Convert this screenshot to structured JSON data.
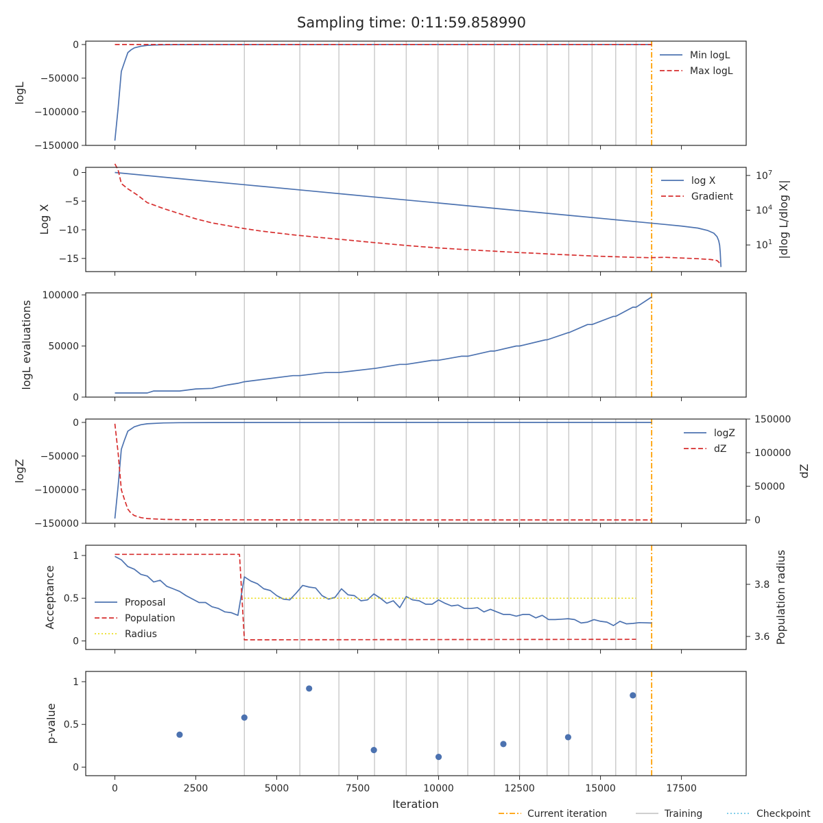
{
  "figure": {
    "title": "Sampling time: 0:11:59.858990",
    "xlabel": "Iteration",
    "xlim": [
      -900,
      19500
    ],
    "xticks": [
      0,
      2500,
      5000,
      7500,
      10000,
      12500,
      15000,
      17500
    ],
    "training_iterations": [
      4000,
      5714,
      6920,
      8020,
      9000,
      9980,
      10900,
      11720,
      12500,
      13350,
      14020,
      14740,
      15470,
      16100
    ],
    "current_iteration": 16580,
    "legend": {
      "current_label": "Current iteration",
      "training_label": "Training",
      "checkpoint_label": "Checkpoint"
    },
    "colors": {
      "blue": "#4c72b0",
      "red": "#d62d2d",
      "orange": "#ff9f00",
      "yellow": "#e8d800",
      "grey": "#c8c8c8",
      "cyan": "#6ec6e6"
    }
  },
  "chart_data": [
    {
      "type": "line",
      "panel": "logL",
      "ylabel": "logL",
      "ylim": [
        -150000,
        5000
      ],
      "yticks": [
        0,
        -50000,
        -100000,
        -150000
      ],
      "series": [
        {
          "name": "Min logL",
          "style": "solid",
          "color": "#4c72b0",
          "x": [
            0,
            100,
            200,
            300,
            400,
            500,
            600,
            800,
            1000,
            1200,
            1500,
            2000,
            3000,
            5000,
            8000,
            12000,
            16580
          ],
          "y": [
            -143000,
            -95000,
            -40000,
            -26000,
            -12000,
            -8000,
            -5000,
            -2500,
            -1200,
            -700,
            -400,
            -200,
            -100,
            -50,
            -20,
            -10,
            -5
          ]
        },
        {
          "name": "Max logL",
          "style": "dashed",
          "color": "#d62d2d",
          "x": [
            0,
            16580
          ],
          "y": [
            -2,
            -2
          ]
        }
      ]
    },
    {
      "type": "line",
      "panel": "logX",
      "ylabel": "Log X",
      "ylabel_right": "|dlog L/dlog X|",
      "ylim": [
        -17.3,
        0.9
      ],
      "yticks": [
        0,
        -5,
        -10,
        -15
      ],
      "y2_log": true,
      "y2_ticks": [
        {
          "base": "10",
          "exp": "7",
          "value": 10000000
        },
        {
          "base": "10",
          "exp": "4",
          "value": 10000
        },
        {
          "base": "10",
          "exp": "1",
          "value": 10
        }
      ],
      "y2_range_log10": [
        -1.3,
        7.7
      ],
      "series": [
        {
          "name": "log X",
          "style": "solid",
          "color": "#4c72b0",
          "x": [
            0,
            2000,
            4000,
            6000,
            8000,
            10000,
            12000,
            14000,
            16000,
            17000,
            17500,
            18000,
            18300,
            18500,
            18600,
            18650,
            18680,
            18700,
            18720
          ],
          "y": [
            0,
            -1.07,
            -2.13,
            -3.2,
            -4.27,
            -5.33,
            -6.4,
            -7.47,
            -8.53,
            -9.07,
            -9.35,
            -9.7,
            -10.1,
            -10.6,
            -11.2,
            -11.9,
            -12.7,
            -14.0,
            -16.5
          ]
        },
        {
          "name": "Gradient",
          "style": "dashed",
          "color": "#d62d2d",
          "axis": "right",
          "x": [
            0,
            100,
            200,
            400,
            700,
            1000,
            1500,
            2000,
            2500,
            3000,
            3500,
            4000,
            4500,
            5000,
            5500,
            6000,
            6500,
            7000,
            7500,
            8000,
            8500,
            9000,
            9500,
            10000,
            10500,
            11000,
            11500,
            12000,
            12500,
            13000,
            13500,
            14000,
            14500,
            15000,
            15500,
            16000,
            16500,
            17000,
            17500,
            18000,
            18400,
            18600,
            18720
          ],
          "y": [
            100000000,
            30000000,
            2000000,
            700000,
            200000,
            45000,
            14000,
            5000,
            1800,
            800,
            450,
            260,
            160,
            110,
            75,
            55,
            40,
            30,
            22,
            16,
            12,
            9,
            7,
            5.5,
            4.5,
            3.7,
            3.1,
            2.6,
            2.2,
            1.9,
            1.6,
            1.4,
            1.2,
            1.05,
            0.95,
            0.85,
            0.8,
            0.85,
            0.75,
            0.65,
            0.55,
            0.45,
            0.22
          ]
        }
      ]
    },
    {
      "type": "line",
      "panel": "evaluations",
      "ylabel": "logL evaluations",
      "ylim": [
        0,
        102000
      ],
      "yticks": [
        0,
        50000,
        100000
      ],
      "series": [
        {
          "name": "",
          "style": "solid",
          "color": "#4c72b0",
          "x": [
            0,
            1000,
            1200,
            2000,
            2500,
            3000,
            3200,
            3500,
            3800,
            4000,
            5500,
            5714,
            6500,
            6920,
            8000,
            8020,
            8800,
            9000,
            9800,
            9980,
            10700,
            10900,
            11600,
            11720,
            12400,
            12500,
            13300,
            13350,
            14000,
            14020,
            14600,
            14740,
            15400,
            15470,
            16000,
            16100,
            16580
          ],
          "y": [
            4000,
            4000,
            6000,
            6000,
            8000,
            8500,
            10000,
            12000,
            13500,
            15000,
            21000,
            21000,
            24000,
            24000,
            28000,
            28000,
            32000,
            32000,
            36000,
            36000,
            40000,
            40000,
            45000,
            45000,
            50000,
            50000,
            56000,
            56000,
            63000,
            63000,
            71000,
            71000,
            79000,
            79000,
            88000,
            88000,
            98000
          ]
        }
      ]
    },
    {
      "type": "line",
      "panel": "logZ",
      "ylabel": "logZ",
      "ylabel_right": "dZ",
      "ylim": [
        -150000,
        5000
      ],
      "yticks": [
        0,
        -50000,
        -100000,
        -150000
      ],
      "y2lim": [
        -5000,
        150000
      ],
      "y2ticks": [
        150000,
        100000,
        50000,
        0
      ],
      "series": [
        {
          "name": "logZ",
          "style": "solid",
          "color": "#4c72b0",
          "x": [
            0,
            100,
            200,
            300,
            400,
            600,
            800,
            1000,
            1500,
            2000,
            3000,
            5000,
            8000,
            12000,
            16580
          ],
          "y": [
            -143000,
            -95000,
            -40000,
            -26000,
            -13000,
            -6500,
            -3500,
            -2000,
            -800,
            -400,
            -150,
            -60,
            -25,
            -10,
            -5
          ]
        },
        {
          "name": "dZ",
          "style": "dashed",
          "color": "#d62d2d",
          "axis": "right",
          "x": [
            0,
            100,
            200,
            300,
            400,
            500,
            600,
            800,
            1000,
            1500,
            2000,
            3000,
            5000,
            8000,
            12000,
            16580
          ],
          "y": [
            143000,
            100000,
            45000,
            30000,
            16000,
            10000,
            6500,
            3500,
            2000,
            800,
            400,
            150,
            60,
            25,
            10,
            5
          ]
        }
      ]
    },
    {
      "type": "line",
      "panel": "acceptance",
      "ylabel": "Acceptance",
      "ylabel_right": "Population radius",
      "ylim": [
        -0.1,
        1.12
      ],
      "yticks": [
        1.0,
        0.5,
        0.0
      ],
      "y2lim": [
        3.55,
        3.95
      ],
      "y2ticks": [
        3.8,
        3.6
      ],
      "series": [
        {
          "name": "Proposal",
          "style": "solid",
          "color": "#4c72b0",
          "x": [
            0,
            200,
            400,
            600,
            800,
            1000,
            1200,
            1400,
            1600,
            1800,
            2000,
            2200,
            2400,
            2600,
            2800,
            3000,
            3200,
            3400,
            3600,
            3800,
            4000,
            4200,
            4400,
            4600,
            4800,
            5000,
            5200,
            5400,
            5600,
            5800,
            6000,
            6200,
            6400,
            6600,
            6800,
            7000,
            7200,
            7400,
            7600,
            7800,
            8000,
            8200,
            8400,
            8600,
            8800,
            9000,
            9200,
            9400,
            9600,
            9800,
            10000,
            10200,
            10400,
            10600,
            10800,
            11000,
            11200,
            11400,
            11600,
            11800,
            12000,
            12200,
            12400,
            12600,
            12800,
            13000,
            13200,
            13400,
            13600,
            13800,
            14000,
            14200,
            14400,
            14600,
            14800,
            15000,
            15200,
            15400,
            15600,
            15800,
            16000,
            16200,
            16580
          ],
          "y": [
            0.99,
            0.95,
            0.87,
            0.84,
            0.78,
            0.76,
            0.69,
            0.71,
            0.64,
            0.61,
            0.58,
            0.53,
            0.49,
            0.45,
            0.45,
            0.4,
            0.38,
            0.34,
            0.33,
            0.3,
            0.75,
            0.7,
            0.67,
            0.61,
            0.59,
            0.53,
            0.49,
            0.48,
            0.56,
            0.65,
            0.63,
            0.62,
            0.53,
            0.49,
            0.51,
            0.61,
            0.54,
            0.53,
            0.47,
            0.48,
            0.55,
            0.5,
            0.44,
            0.47,
            0.39,
            0.52,
            0.48,
            0.47,
            0.43,
            0.43,
            0.48,
            0.44,
            0.41,
            0.42,
            0.38,
            0.38,
            0.39,
            0.34,
            0.37,
            0.34,
            0.31,
            0.31,
            0.29,
            0.31,
            0.31,
            0.27,
            0.3,
            0.25,
            0.25,
            0.255,
            0.26,
            0.25,
            0.21,
            0.22,
            0.25,
            0.23,
            0.22,
            0.18,
            0.23,
            0.2,
            0.205,
            0.215,
            0.21
          ]
        },
        {
          "name": "Population",
          "style": "dashed",
          "color": "#d62d2d",
          "axis": "right",
          "x": [
            0,
            3850,
            4000,
            16100
          ],
          "y": [
            3.915,
            3.915,
            3.587,
            3.589
          ]
        },
        {
          "name": "Radius",
          "style": "dotted",
          "color": "#e8d800",
          "x": [
            4000,
            16100
          ],
          "y": [
            0.5,
            0.5
          ]
        }
      ]
    },
    {
      "type": "scatter",
      "panel": "pvalue",
      "ylabel": "p-value",
      "ylim": [
        -0.1,
        1.12
      ],
      "yticks": [
        1.0,
        0.5,
        0.0
      ],
      "series": [
        {
          "name": "",
          "color": "#4c72b0",
          "x": [
            2000,
            4000,
            6000,
            8000,
            10000,
            12000,
            14000,
            16000
          ],
          "y": [
            0.38,
            0.58,
            0.92,
            0.2,
            0.12,
            0.27,
            0.35,
            0.84
          ]
        }
      ]
    }
  ]
}
